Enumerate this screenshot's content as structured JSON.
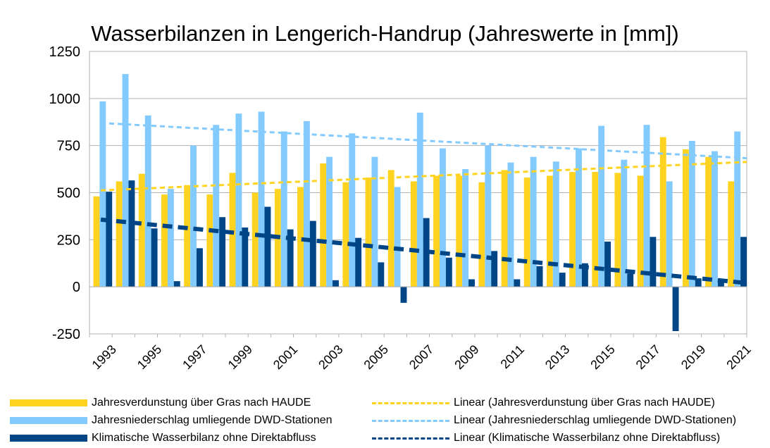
{
  "chart_data": {
    "type": "bar",
    "title": "Wasserbilanzen in Lengerich-Handrup (Jahreswerte in [mm])",
    "xlabel": "",
    "ylabel": "",
    "ylim": [
      -250,
      1250
    ],
    "yticks": [
      "1250",
      "1000",
      "750",
      "500",
      "250",
      "0",
      "-250"
    ],
    "ytick_values": [
      1250,
      1000,
      750,
      500,
      250,
      0,
      -250
    ],
    "categories": [
      "1993",
      "1994",
      "1995",
      "1996",
      "1997",
      "1998",
      "1999",
      "2000",
      "2001",
      "2002",
      "2003",
      "2004",
      "2005",
      "2006",
      "2007",
      "2008",
      "2009",
      "2010",
      "2011",
      "2012",
      "2013",
      "2014",
      "2015",
      "2016",
      "2017",
      "2018",
      "2019",
      "2020",
      "2021"
    ],
    "xtick_labels": [
      "1993",
      "1995",
      "1997",
      "1999",
      "2001",
      "2003",
      "2005",
      "2007",
      "2009",
      "2011",
      "2013",
      "2015",
      "2017",
      "2019",
      "2021"
    ],
    "grid": true,
    "legend_position": "bottom",
    "series": [
      {
        "name": "Jahresverdunstung über Gras nach HAUDE",
        "color": "#ffd320",
        "values": [
          480,
          560,
          600,
          490,
          540,
          490,
          605,
          500,
          520,
          530,
          655,
          555,
          580,
          620,
          560,
          590,
          590,
          555,
          620,
          580,
          590,
          610,
          610,
          605,
          590,
          795,
          730,
          690,
          560
        ]
      },
      {
        "name": "Jahresniederschlag umliegende DWD-Stationen",
        "color": "#83caff",
        "values": [
          985,
          1130,
          910,
          520,
          750,
          860,
          920,
          930,
          825,
          880,
          690,
          815,
          690,
          530,
          925,
          735,
          625,
          750,
          660,
          690,
          665,
          735,
          855,
          675,
          860,
          560,
          775,
          720,
          825
        ]
      },
      {
        "name": "Klimatische Wasserbilanz ohne Direktabfluss",
        "color": "#004586",
        "values": [
          505,
          565,
          310,
          30,
          205,
          370,
          315,
          425,
          305,
          350,
          35,
          260,
          130,
          -85,
          365,
          155,
          40,
          190,
          40,
          110,
          75,
          125,
          240,
          70,
          265,
          -235,
          45,
          30,
          265
        ]
      }
    ],
    "trendlines": [
      {
        "name": "Linear (Jahresverdunstung über Gras nach HAUDE)",
        "color": "#ffd320",
        "start": 512,
        "end": 663
      },
      {
        "name": "Linear (Jahresniederschlag umliegende DWD-Stationen)",
        "color": "#83caff",
        "start": 870,
        "end": 683
      },
      {
        "name": "Linear (Klimatische Wasserbilanz ohne Direktabfluss)",
        "color": "#004586",
        "start": 357,
        "end": 20
      }
    ]
  },
  "legend": {
    "items": [
      {
        "label": "Jahresverdunstung über Gras nach HAUDE",
        "color": "#ffd320"
      },
      {
        "label": "Jahresniederschlag umliegende DWD-Stationen",
        "color": "#83caff"
      },
      {
        "label": "Klimatische Wasserbilanz ohne Direktabfluss",
        "color": "#004586"
      },
      {
        "label": "Linear (Jahresverdunstung über Gras nach HAUDE)",
        "color": "#ffd320"
      },
      {
        "label": "Linear (Jahresniederschlag umliegende DWD-Stationen)",
        "color": "#83caff"
      },
      {
        "label": "Linear (Klimatische Wasserbilanz ohne Direktabfluss)",
        "color": "#004586"
      }
    ]
  }
}
